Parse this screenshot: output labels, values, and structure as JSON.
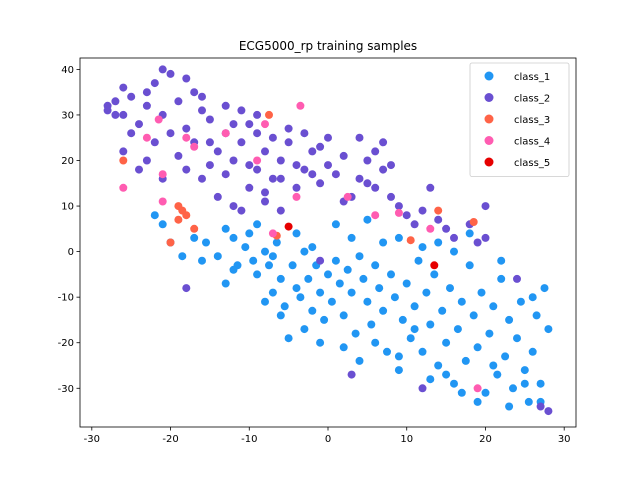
{
  "chart_data": {
    "type": "scatter",
    "title": "ECG5000_rp training samples",
    "xlabel": "",
    "ylabel": "",
    "xlim": [
      -31.5,
      31.5
    ],
    "ylim": [
      -38.5,
      42.5
    ],
    "xticks": [
      -30,
      -20,
      -10,
      0,
      10,
      20,
      30
    ],
    "yticks": [
      -30,
      -20,
      -10,
      0,
      10,
      20,
      30,
      40
    ],
    "grid": false,
    "legend_position": "top-right",
    "series": [
      {
        "name": "class_1",
        "color": "#2196f3",
        "points": [
          [
            -22,
            8
          ],
          [
            -20,
            2
          ],
          [
            -18.5,
            -1
          ],
          [
            -17,
            3
          ],
          [
            -15.5,
            2
          ],
          [
            -14,
            -1
          ],
          [
            -13,
            -7
          ],
          [
            -12,
            3
          ],
          [
            -11.5,
            -3
          ],
          [
            -10.5,
            1
          ],
          [
            -10,
            4
          ],
          [
            -9.5,
            -2
          ],
          [
            -9,
            -5
          ],
          [
            -8,
            0
          ],
          [
            -7.5,
            -3
          ],
          [
            -7,
            -9
          ],
          [
            -6.5,
            2
          ],
          [
            -6,
            -6
          ],
          [
            -5.5,
            -12
          ],
          [
            -5,
            -19
          ],
          [
            -4.5,
            -3
          ],
          [
            -4,
            -8
          ],
          [
            -3.5,
            -10
          ],
          [
            -3,
            0
          ],
          [
            -2.5,
            -6
          ],
          [
            -2,
            -13
          ],
          [
            -1.5,
            -3
          ],
          [
            -1,
            -9
          ],
          [
            -0.5,
            -15
          ],
          [
            0,
            -5
          ],
          [
            0.5,
            -11
          ],
          [
            1,
            -2
          ],
          [
            1.5,
            -7
          ],
          [
            2,
            -14
          ],
          [
            2.5,
            -4
          ],
          [
            3,
            -9
          ],
          [
            3.5,
            -18
          ],
          [
            4,
            -1
          ],
          [
            4.5,
            -6
          ],
          [
            5,
            -11
          ],
          [
            5.5,
            -16
          ],
          [
            6,
            -3
          ],
          [
            6.5,
            -8
          ],
          [
            7,
            -13
          ],
          [
            7.5,
            -22
          ],
          [
            8,
            -5
          ],
          [
            8.5,
            -10
          ],
          [
            9,
            -26
          ],
          [
            9.5,
            -15
          ],
          [
            10,
            -7
          ],
          [
            10.5,
            -19
          ],
          [
            11,
            -12
          ],
          [
            11.5,
            -2
          ],
          [
            12,
            -22
          ],
          [
            12.5,
            -9
          ],
          [
            13,
            -16
          ],
          [
            13.5,
            -5
          ],
          [
            14,
            -25
          ],
          [
            14.5,
            -13
          ],
          [
            15,
            -20
          ],
          [
            15.5,
            -8
          ],
          [
            16,
            -29
          ],
          [
            16.5,
            -17
          ],
          [
            17,
            -11
          ],
          [
            17.5,
            -24
          ],
          [
            18,
            -3
          ],
          [
            18.5,
            -14
          ],
          [
            19,
            -21
          ],
          [
            19.5,
            -9
          ],
          [
            20,
            -31
          ],
          [
            20.5,
            -18
          ],
          [
            21,
            -12
          ],
          [
            21.5,
            -27
          ],
          [
            22,
            -6
          ],
          [
            22.5,
            -23
          ],
          [
            23,
            -15
          ],
          [
            23.5,
            -30
          ],
          [
            24,
            -19
          ],
          [
            24.5,
            -11
          ],
          [
            25,
            -26
          ],
          [
            25.5,
            -33
          ],
          [
            26,
            -22
          ],
          [
            26.5,
            -14
          ],
          [
            27,
            -29
          ],
          [
            27.5,
            -8
          ],
          [
            28,
            -17
          ],
          [
            -21,
            6
          ],
          [
            -16,
            -2
          ],
          [
            -12,
            -4
          ],
          [
            -8,
            -11
          ],
          [
            -3,
            -17
          ],
          [
            2,
            -21
          ],
          [
            6,
            -20
          ],
          [
            11,
            -17
          ],
          [
            15,
            -27
          ],
          [
            19,
            -33
          ],
          [
            23,
            -34
          ],
          [
            -6,
            -14
          ],
          [
            -1,
            -20
          ],
          [
            4,
            -24
          ],
          [
            9,
            -23
          ],
          [
            13,
            -28
          ],
          [
            17,
            -31
          ],
          [
            21,
            -25
          ],
          [
            25,
            -29
          ],
          [
            27,
            -33
          ],
          [
            -9,
            6
          ],
          [
            -4,
            4
          ],
          [
            1,
            6
          ],
          [
            5,
            7
          ],
          [
            9,
            3
          ],
          [
            14,
            2
          ],
          [
            18,
            4
          ],
          [
            22,
            -2
          ],
          [
            26,
            -10
          ],
          [
            16,
            0
          ],
          [
            12,
            1
          ],
          [
            7,
            2
          ],
          [
            3,
            3
          ],
          [
            -2,
            1
          ],
          [
            -7,
            -1
          ],
          [
            -13,
            5
          ]
        ]
      },
      {
        "name": "class_2",
        "color": "#6a4fd1",
        "points": [
          [
            -28,
            31
          ],
          [
            -27,
            33
          ],
          [
            -26,
            30
          ],
          [
            -25,
            34
          ],
          [
            -24,
            28
          ],
          [
            -23,
            32
          ],
          [
            -22,
            37
          ],
          [
            -21,
            30
          ],
          [
            -20,
            39
          ],
          [
            -19,
            33
          ],
          [
            -18,
            27
          ],
          [
            -17,
            35
          ],
          [
            -16,
            31
          ],
          [
            -15,
            29
          ],
          [
            -14,
            22
          ],
          [
            -13,
            26
          ],
          [
            -12,
            20
          ],
          [
            -11,
            24
          ],
          [
            -10,
            28
          ],
          [
            -9,
            18
          ],
          [
            -8,
            22
          ],
          [
            -7,
            16
          ],
          [
            -6,
            20
          ],
          [
            -5,
            24
          ],
          [
            -4,
            14
          ],
          [
            -3,
            18
          ],
          [
            -2,
            22
          ],
          [
            -1,
            15
          ],
          [
            0,
            19
          ],
          [
            1,
            17
          ],
          [
            2,
            21
          ],
          [
            3,
            12
          ],
          [
            4,
            16
          ],
          [
            5,
            20
          ],
          [
            6,
            14
          ],
          [
            7,
            18
          ],
          [
            8,
            12
          ],
          [
            9,
            10
          ],
          [
            10,
            8
          ],
          [
            11,
            6
          ],
          [
            12,
            9
          ],
          [
            13,
            14
          ],
          [
            14,
            7
          ],
          [
            15,
            5
          ],
          [
            16,
            3
          ],
          [
            18,
            6
          ],
          [
            20,
            3
          ],
          [
            -26,
            22
          ],
          [
            -24,
            18
          ],
          [
            -22,
            24
          ],
          [
            -20,
            26
          ],
          [
            -18,
            18
          ],
          [
            -16,
            16
          ],
          [
            -14,
            12
          ],
          [
            -12,
            10
          ],
          [
            -10,
            14
          ],
          [
            -8,
            11
          ],
          [
            -6,
            9
          ],
          [
            -25,
            26
          ],
          [
            -23,
            20
          ],
          [
            -21,
            16
          ],
          [
            -19,
            21
          ],
          [
            -17,
            24
          ],
          [
            -15,
            19
          ],
          [
            -13,
            17
          ],
          [
            -11,
            9
          ],
          [
            -9,
            26
          ],
          [
            -7,
            25
          ],
          [
            -5,
            27
          ],
          [
            -3,
            26
          ],
          [
            -1,
            23
          ],
          [
            4,
            25
          ],
          [
            6,
            22
          ],
          [
            8,
            19
          ],
          [
            -27,
            30
          ],
          [
            -26,
            36
          ],
          [
            -23,
            35
          ],
          [
            -21,
            40
          ],
          [
            -18,
            38
          ],
          [
            -16,
            34
          ],
          [
            -13,
            32
          ],
          [
            -11,
            31
          ],
          [
            -9,
            30
          ],
          [
            -28,
            32
          ],
          [
            -15,
            24
          ],
          [
            -12,
            28
          ],
          [
            -10,
            19
          ],
          [
            -8,
            13
          ],
          [
            -6,
            16
          ],
          [
            -4,
            19
          ],
          [
            -2,
            17
          ],
          [
            0,
            25
          ],
          [
            2,
            11
          ],
          [
            5,
            15
          ],
          [
            7,
            24
          ],
          [
            -18,
            -8
          ],
          [
            -1,
            -2
          ],
          [
            3,
            -27
          ],
          [
            12,
            -30
          ],
          [
            24,
            -6
          ],
          [
            27,
            -34
          ],
          [
            28,
            -35
          ],
          [
            19,
            2
          ],
          [
            20,
            10
          ]
        ]
      },
      {
        "name": "class_3",
        "color": "#ff6347",
        "points": [
          [
            -26,
            20
          ],
          [
            -19,
            10
          ],
          [
            -18,
            8
          ],
          [
            -18.5,
            9
          ],
          [
            -19,
            7
          ],
          [
            -17,
            5
          ],
          [
            -20,
            2
          ],
          [
            -7.5,
            30
          ],
          [
            10.5,
            2.5
          ],
          [
            14,
            9
          ],
          [
            18.5,
            6.5
          ],
          [
            -6.5,
            3.5
          ]
        ]
      },
      {
        "name": "class_4",
        "color": "#ff5cb1",
        "points": [
          [
            -26,
            14
          ],
          [
            -21,
            17
          ],
          [
            -21.5,
            29
          ],
          [
            -21,
            11
          ],
          [
            -18,
            25
          ],
          [
            -17,
            23
          ],
          [
            -8,
            28
          ],
          [
            -3.5,
            32
          ],
          [
            -4,
            12
          ],
          [
            -7,
            4
          ],
          [
            2.5,
            12
          ],
          [
            6,
            8
          ],
          [
            9,
            8.5
          ],
          [
            13,
            5
          ],
          [
            19,
            -30
          ],
          [
            -9,
            20
          ],
          [
            -13,
            26
          ],
          [
            -23,
            25
          ]
        ]
      },
      {
        "name": "class_5",
        "color": "#e60000",
        "points": [
          [
            -5,
            5.5
          ],
          [
            13.5,
            -3
          ]
        ]
      }
    ]
  }
}
